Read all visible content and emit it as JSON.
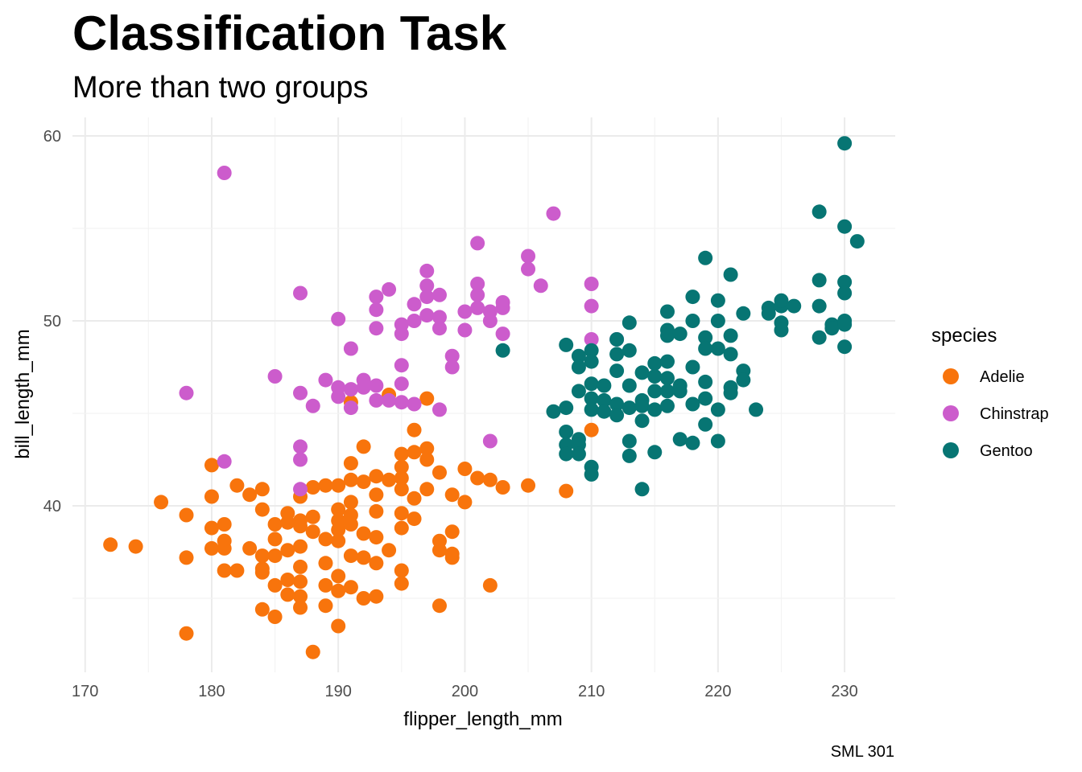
{
  "chart_data": {
    "type": "scatter",
    "title": "Classification Task",
    "subtitle": "More than two groups",
    "xlabel": "flipper_length_mm",
    "ylabel": "bill_length_mm",
    "caption": "SML 301",
    "xlim": [
      169,
      234
    ],
    "ylim": [
      31,
      61
    ],
    "xticks": [
      170,
      180,
      190,
      200,
      210,
      220,
      230
    ],
    "yticks": [
      40,
      50,
      60
    ],
    "grid": true,
    "legend": {
      "title": "species",
      "position": "right"
    },
    "series": [
      {
        "name": "Adelie",
        "color": "#F8740C",
        "points": [
          [
            172,
            37.9
          ],
          [
            174,
            37.8
          ],
          [
            176,
            40.2
          ],
          [
            178,
            39.5
          ],
          [
            178,
            37.2
          ],
          [
            178,
            33.1
          ],
          [
            180,
            42.2
          ],
          [
            180,
            40.5
          ],
          [
            180,
            38.8
          ],
          [
            180,
            37.7
          ],
          [
            181,
            39.0
          ],
          [
            181,
            38.1
          ],
          [
            181,
            37.7
          ],
          [
            181,
            36.5
          ],
          [
            182,
            41.1
          ],
          [
            182,
            36.5
          ],
          [
            183,
            40.6
          ],
          [
            183,
            37.7
          ],
          [
            184,
            40.9
          ],
          [
            184,
            39.8
          ],
          [
            184,
            37.3
          ],
          [
            184,
            36.6
          ],
          [
            184,
            36.4
          ],
          [
            184,
            34.4
          ],
          [
            185,
            39.0
          ],
          [
            185,
            38.2
          ],
          [
            185,
            37.3
          ],
          [
            185,
            35.7
          ],
          [
            185,
            34.0
          ],
          [
            186,
            39.6
          ],
          [
            186,
            39.1
          ],
          [
            186,
            37.6
          ],
          [
            186,
            36.0
          ],
          [
            186,
            35.2
          ],
          [
            187,
            40.5
          ],
          [
            187,
            39.2
          ],
          [
            187,
            38.9
          ],
          [
            187,
            37.8
          ],
          [
            187,
            36.7
          ],
          [
            187,
            35.9
          ],
          [
            187,
            35.1
          ],
          [
            187,
            34.5
          ],
          [
            188,
            41.0
          ],
          [
            188,
            39.4
          ],
          [
            188,
            38.6
          ],
          [
            188,
            32.1
          ],
          [
            189,
            41.1
          ],
          [
            189,
            38.2
          ],
          [
            189,
            36.9
          ],
          [
            189,
            35.7
          ],
          [
            189,
            34.6
          ],
          [
            190,
            41.1
          ],
          [
            190,
            39.8
          ],
          [
            190,
            39.2
          ],
          [
            190,
            38.7
          ],
          [
            190,
            38.1
          ],
          [
            190,
            36.2
          ],
          [
            190,
            35.4
          ],
          [
            190,
            33.5
          ],
          [
            191,
            42.3
          ],
          [
            191,
            41.4
          ],
          [
            191,
            40.2
          ],
          [
            191,
            39.5
          ],
          [
            191,
            39.0
          ],
          [
            191,
            37.3
          ],
          [
            191,
            35.6
          ],
          [
            191,
            45.6
          ],
          [
            192,
            43.2
          ],
          [
            192,
            41.3
          ],
          [
            192,
            38.5
          ],
          [
            192,
            37.2
          ],
          [
            192,
            35.0
          ],
          [
            193,
            41.6
          ],
          [
            193,
            40.6
          ],
          [
            193,
            39.7
          ],
          [
            193,
            38.3
          ],
          [
            193,
            36.9
          ],
          [
            193,
            35.1
          ],
          [
            194,
            41.4
          ],
          [
            194,
            37.6
          ],
          [
            194,
            46.0
          ],
          [
            195,
            42.8
          ],
          [
            195,
            42.1
          ],
          [
            195,
            41.5
          ],
          [
            195,
            40.9
          ],
          [
            195,
            39.6
          ],
          [
            195,
            38.8
          ],
          [
            195,
            36.5
          ],
          [
            195,
            35.8
          ],
          [
            196,
            44.1
          ],
          [
            196,
            42.9
          ],
          [
            196,
            40.4
          ],
          [
            196,
            39.3
          ],
          [
            197,
            43.1
          ],
          [
            197,
            42.5
          ],
          [
            197,
            40.9
          ],
          [
            197,
            45.8
          ],
          [
            198,
            41.8
          ],
          [
            198,
            38.1
          ],
          [
            198,
            37.6
          ],
          [
            198,
            34.6
          ],
          [
            199,
            40.6
          ],
          [
            199,
            38.6
          ],
          [
            199,
            37.4
          ],
          [
            199,
            37.2
          ],
          [
            200,
            42.0
          ],
          [
            200,
            40.2
          ],
          [
            201,
            41.5
          ],
          [
            202,
            41.4
          ],
          [
            202,
            35.7
          ],
          [
            203,
            41.0
          ],
          [
            205,
            41.1
          ],
          [
            208,
            40.8
          ],
          [
            210,
            44.1
          ]
        ]
      },
      {
        "name": "Chinstrap",
        "color": "#CC5CCC",
        "points": [
          [
            178,
            46.1
          ],
          [
            181,
            58.0
          ],
          [
            181,
            42.4
          ],
          [
            185,
            47.0
          ],
          [
            187,
            51.5
          ],
          [
            187,
            46.1
          ],
          [
            187,
            43.2
          ],
          [
            187,
            42.5
          ],
          [
            187,
            40.9
          ],
          [
            188,
            45.4
          ],
          [
            189,
            46.8
          ],
          [
            190,
            50.1
          ],
          [
            190,
            46.4
          ],
          [
            190,
            45.9
          ],
          [
            191,
            48.5
          ],
          [
            191,
            46.3
          ],
          [
            191,
            45.3
          ],
          [
            192,
            46.8
          ],
          [
            192,
            46.4
          ],
          [
            193,
            51.3
          ],
          [
            193,
            50.6
          ],
          [
            193,
            49.6
          ],
          [
            193,
            46.5
          ],
          [
            193,
            45.7
          ],
          [
            194,
            51.7
          ],
          [
            194,
            45.7
          ],
          [
            195,
            49.8
          ],
          [
            195,
            49.3
          ],
          [
            195,
            47.6
          ],
          [
            195,
            46.6
          ],
          [
            195,
            45.6
          ],
          [
            196,
            50.9
          ],
          [
            196,
            50.0
          ],
          [
            196,
            45.5
          ],
          [
            197,
            52.7
          ],
          [
            197,
            51.9
          ],
          [
            197,
            51.3
          ],
          [
            197,
            50.3
          ],
          [
            198,
            51.4
          ],
          [
            198,
            50.2
          ],
          [
            198,
            49.6
          ],
          [
            198,
            45.2
          ],
          [
            199,
            48.1
          ],
          [
            199,
            47.5
          ],
          [
            200,
            50.5
          ],
          [
            200,
            49.5
          ],
          [
            201,
            54.2
          ],
          [
            201,
            52.0
          ],
          [
            201,
            51.4
          ],
          [
            201,
            50.7
          ],
          [
            202,
            50.5
          ],
          [
            202,
            50.0
          ],
          [
            202,
            43.5
          ],
          [
            203,
            51.0
          ],
          [
            203,
            50.7
          ],
          [
            203,
            49.3
          ],
          [
            205,
            53.5
          ],
          [
            205,
            52.8
          ],
          [
            206,
            51.9
          ],
          [
            207,
            55.8
          ],
          [
            210,
            52.0
          ],
          [
            210,
            50.8
          ],
          [
            210,
            49.0
          ],
          [
            212,
            49.0
          ]
        ]
      },
      {
        "name": "Gentoo",
        "color": "#077573",
        "points": [
          [
            203,
            48.4
          ],
          [
            207,
            45.1
          ],
          [
            208,
            48.7
          ],
          [
            208,
            45.3
          ],
          [
            208,
            44.0
          ],
          [
            208,
            43.3
          ],
          [
            208,
            42.8
          ],
          [
            209,
            48.1
          ],
          [
            209,
            47.5
          ],
          [
            209,
            46.2
          ],
          [
            209,
            43.6
          ],
          [
            209,
            43.3
          ],
          [
            209,
            42.8
          ],
          [
            210,
            48.4
          ],
          [
            210,
            47.8
          ],
          [
            210,
            46.6
          ],
          [
            210,
            45.8
          ],
          [
            210,
            45.2
          ],
          [
            210,
            42.1
          ],
          [
            210,
            41.7
          ],
          [
            211,
            46.5
          ],
          [
            211,
            45.7
          ],
          [
            211,
            45.1
          ],
          [
            212,
            49.0
          ],
          [
            212,
            48.2
          ],
          [
            212,
            47.3
          ],
          [
            212,
            45.5
          ],
          [
            212,
            44.9
          ],
          [
            213,
            49.9
          ],
          [
            213,
            48.4
          ],
          [
            213,
            46.5
          ],
          [
            213,
            45.3
          ],
          [
            213,
            43.5
          ],
          [
            213,
            42.7
          ],
          [
            214,
            47.2
          ],
          [
            214,
            45.7
          ],
          [
            214,
            45.4
          ],
          [
            214,
            44.6
          ],
          [
            214,
            40.9
          ],
          [
            215,
            47.7
          ],
          [
            215,
            47.0
          ],
          [
            215,
            46.2
          ],
          [
            215,
            45.2
          ],
          [
            215,
            42.9
          ],
          [
            216,
            50.5
          ],
          [
            216,
            49.5
          ],
          [
            216,
            49.2
          ],
          [
            216,
            47.8
          ],
          [
            216,
            46.9
          ],
          [
            216,
            46.2
          ],
          [
            216,
            45.4
          ],
          [
            217,
            49.3
          ],
          [
            217,
            46.5
          ],
          [
            217,
            46.2
          ],
          [
            217,
            43.6
          ],
          [
            218,
            51.3
          ],
          [
            218,
            50.0
          ],
          [
            218,
            47.5
          ],
          [
            218,
            45.5
          ],
          [
            218,
            43.4
          ],
          [
            219,
            53.4
          ],
          [
            219,
            49.1
          ],
          [
            219,
            48.5
          ],
          [
            219,
            46.7
          ],
          [
            219,
            45.8
          ],
          [
            219,
            44.4
          ],
          [
            220,
            51.1
          ],
          [
            220,
            50.0
          ],
          [
            220,
            48.5
          ],
          [
            220,
            45.2
          ],
          [
            220,
            43.5
          ],
          [
            221,
            52.5
          ],
          [
            221,
            49.2
          ],
          [
            221,
            48.2
          ],
          [
            221,
            46.4
          ],
          [
            221,
            46.1
          ],
          [
            222,
            47.3
          ],
          [
            222,
            46.8
          ],
          [
            222,
            50.4
          ],
          [
            223,
            45.2
          ],
          [
            224,
            50.7
          ],
          [
            224,
            50.4
          ],
          [
            225,
            50.8
          ],
          [
            225,
            51.1
          ],
          [
            225,
            49.9
          ],
          [
            225,
            49.5
          ],
          [
            226,
            50.8
          ],
          [
            228,
            55.9
          ],
          [
            228,
            52.2
          ],
          [
            228,
            50.8
          ],
          [
            228,
            49.1
          ],
          [
            229,
            49.8
          ],
          [
            229,
            49.6
          ],
          [
            230,
            59.6
          ],
          [
            230,
            55.1
          ],
          [
            230,
            52.1
          ],
          [
            230,
            51.5
          ],
          [
            230,
            50.0
          ],
          [
            230,
            49.8
          ],
          [
            230,
            48.6
          ],
          [
            231,
            54.3
          ]
        ]
      }
    ]
  }
}
